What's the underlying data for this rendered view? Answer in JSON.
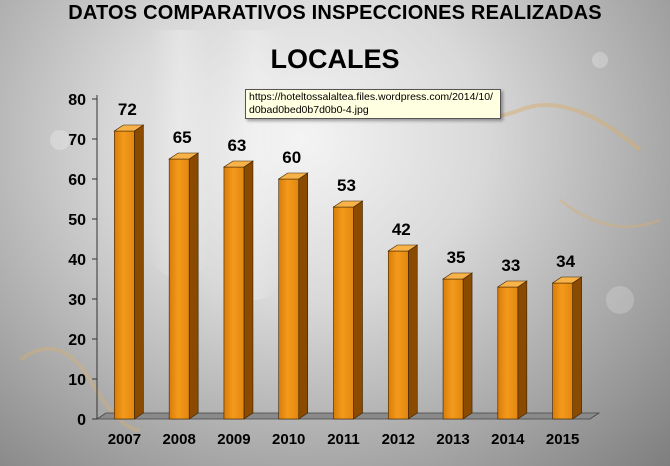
{
  "chart_data": {
    "type": "bar",
    "title": "DATOS COMPARATIVOS INSPECCIONES REALIZADAS",
    "subtitle": "LOCALES",
    "categories": [
      "2007",
      "2008",
      "2009",
      "2010",
      "2011",
      "2012",
      "2013",
      "2014",
      "2015"
    ],
    "values": [
      72,
      65,
      63,
      60,
      53,
      42,
      35,
      33,
      34
    ],
    "data_labels": [
      "72",
      "65",
      "63",
      "60",
      "53",
      "42",
      "35",
      "33",
      "34"
    ],
    "yticks": [
      "0",
      "10",
      "20",
      "30",
      "40",
      "50",
      "60",
      "70",
      "80"
    ],
    "ylim": [
      0,
      80
    ],
    "xlabel": "",
    "ylabel": "",
    "grid": false,
    "bar_color": "#f39a1c"
  },
  "tooltip": {
    "text": "https://hoteltossalaltea.files.wordpress.com/2014/10/d0bad0bed0b7d0b0-4.jpg"
  }
}
